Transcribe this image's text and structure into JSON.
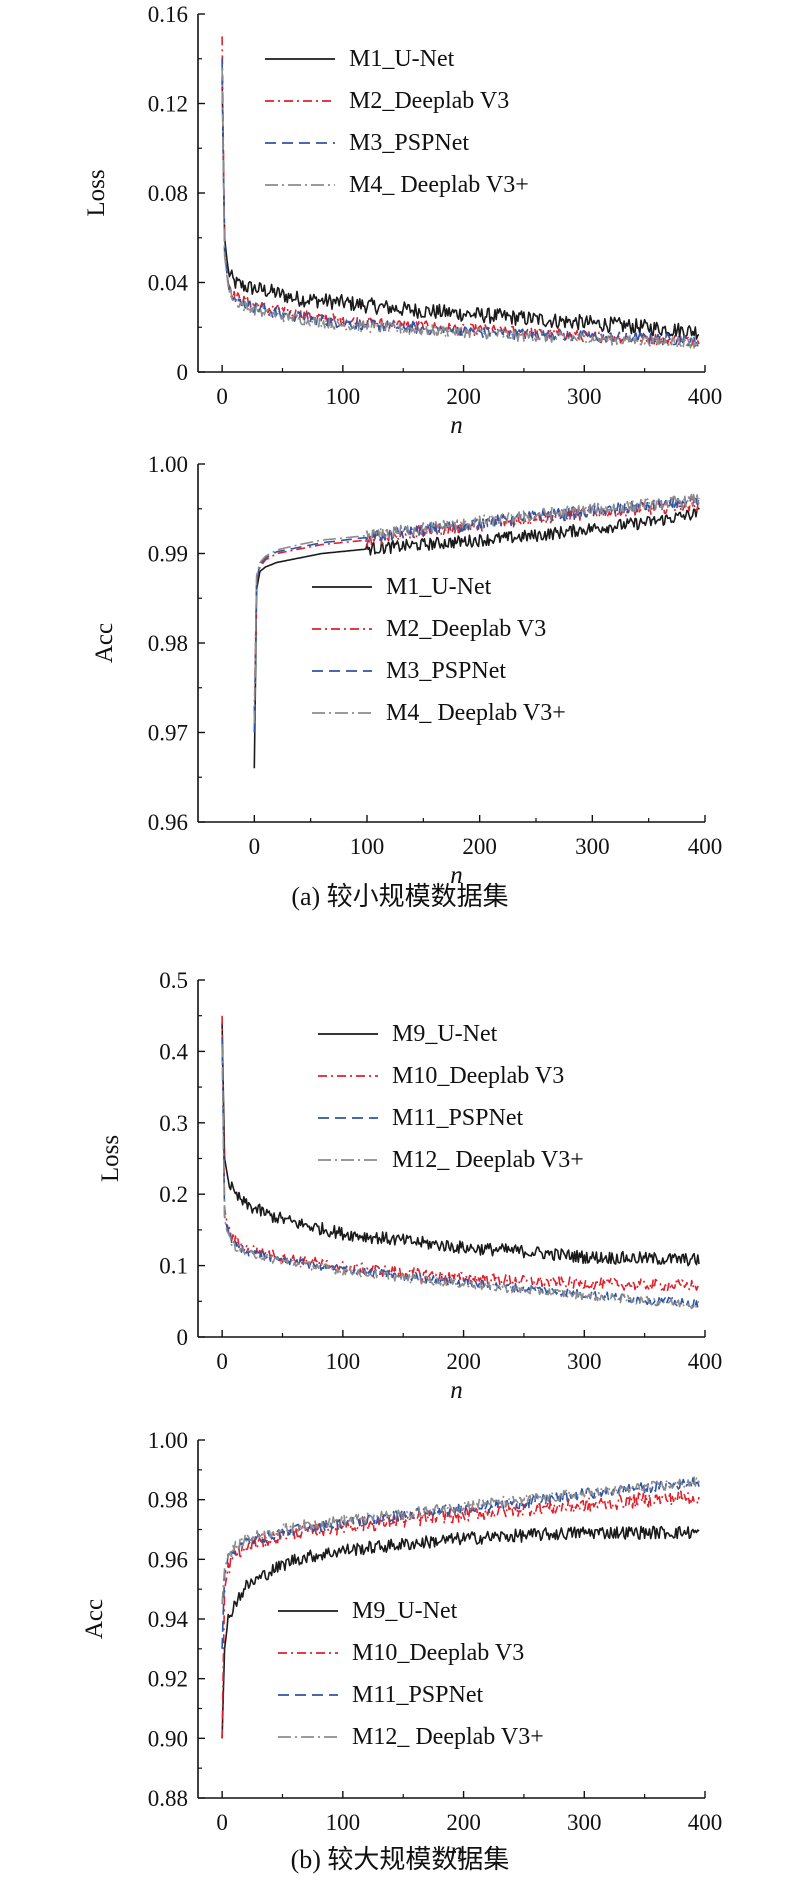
{
  "captions": {
    "a": "(a) 较小规模数据集",
    "b": "(b) 较大规模数据集"
  },
  "colors": {
    "unet": "#1a1a1a",
    "deeplab_v3": "#e0202a",
    "pspnet": "#2b55a8",
    "deeplab_v3plus": "#8c8c8c"
  },
  "chart_data": [
    {
      "id": "a_loss",
      "type": "line",
      "title": "",
      "xlabel": "n",
      "ylabel": "Loss",
      "xlim": [
        -20,
        400
      ],
      "ylim": [
        0,
        0.16
      ],
      "xticks": [
        0,
        100,
        200,
        300,
        400
      ],
      "xtick_labels": [
        "0",
        "100",
        "200",
        "300",
        "400"
      ],
      "yticks": [
        0,
        0.04,
        0.08,
        0.12,
        0.16
      ],
      "ytick_labels": [
        "0",
        "0.04",
        "0.08",
        "0.12",
        "0.16"
      ],
      "legend_position": "top-right",
      "series": [
        {
          "name": "M1_U-Net",
          "style": "solid",
          "color": "#1a1a1a",
          "x": [
            0,
            2,
            5,
            10,
            20,
            40,
            60,
            100,
            150,
            200,
            250,
            300,
            350,
            395
          ],
          "y": [
            0.132,
            0.06,
            0.045,
            0.04,
            0.038,
            0.036,
            0.033,
            0.031,
            0.028,
            0.026,
            0.024,
            0.022,
            0.02,
            0.018
          ],
          "noise": 0.0035
        },
        {
          "name": "M2_Deeplab V3",
          "style": "dashdot",
          "color": "#e0202a",
          "x": [
            0,
            2,
            5,
            10,
            20,
            40,
            60,
            100,
            150,
            200,
            250,
            300,
            350,
            395
          ],
          "y": [
            0.15,
            0.055,
            0.04,
            0.034,
            0.031,
            0.028,
            0.026,
            0.023,
            0.021,
            0.019,
            0.018,
            0.016,
            0.015,
            0.014
          ],
          "noise": 0.0025
        },
        {
          "name": "M3_PSPNet",
          "style": "dashed",
          "color": "#2b55a8",
          "x": [
            0,
            2,
            5,
            10,
            20,
            40,
            60,
            100,
            150,
            200,
            250,
            300,
            350,
            395
          ],
          "y": [
            0.14,
            0.054,
            0.039,
            0.033,
            0.03,
            0.027,
            0.025,
            0.022,
            0.02,
            0.018,
            0.017,
            0.016,
            0.015,
            0.014
          ],
          "noise": 0.0025
        },
        {
          "name": "M4_ Deeplab V3+",
          "style": "dashdot2",
          "color": "#8c8c8c",
          "x": [
            0,
            2,
            5,
            10,
            20,
            40,
            60,
            100,
            150,
            200,
            250,
            300,
            350,
            395
          ],
          "y": [
            0.136,
            0.052,
            0.038,
            0.032,
            0.029,
            0.026,
            0.024,
            0.021,
            0.019,
            0.018,
            0.016,
            0.015,
            0.014,
            0.013
          ],
          "noise": 0.0025
        }
      ]
    },
    {
      "id": "a_acc",
      "type": "line",
      "title": "",
      "xlabel": "n",
      "ylabel": "Acc",
      "xlim": [
        -50,
        400
      ],
      "ylim": [
        0.96,
        1.0
      ],
      "xticks": [
        0,
        100,
        200,
        300,
        400
      ],
      "xtick_labels": [
        "0",
        "100",
        "200",
        "300",
        "400"
      ],
      "yticks": [
        0.96,
        0.97,
        0.98,
        0.99,
        1.0
      ],
      "ytick_labels": [
        "0.96",
        "0.97",
        "0.98",
        "0.99",
        "1.00"
      ],
      "legend_position": "middle-right",
      "series": [
        {
          "name": "M1_U-Net",
          "style": "solid",
          "color": "#1a1a1a",
          "x": [
            0,
            2,
            5,
            10,
            20,
            40,
            60,
            100,
            150,
            200,
            250,
            300,
            350,
            395
          ],
          "y": [
            0.966,
            0.986,
            0.988,
            0.9885,
            0.989,
            0.9895,
            0.99,
            0.9905,
            0.991,
            0.9915,
            0.992,
            0.9928,
            0.9935,
            0.9945
          ],
          "noise": 0.0007
        },
        {
          "name": "M2_Deeplab V3",
          "style": "dashdot",
          "color": "#e0202a",
          "x": [
            0,
            2,
            5,
            10,
            20,
            40,
            60,
            100,
            150,
            200,
            250,
            300,
            350,
            395
          ],
          "y": [
            0.972,
            0.987,
            0.9885,
            0.9893,
            0.99,
            0.9905,
            0.991,
            0.9915,
            0.9925,
            0.9932,
            0.994,
            0.9945,
            0.995,
            0.9955
          ],
          "noise": 0.0007
        },
        {
          "name": "M3_PSPNet",
          "style": "dashed",
          "color": "#2b55a8",
          "x": [
            0,
            2,
            5,
            10,
            20,
            40,
            60,
            100,
            150,
            200,
            250,
            300,
            350,
            395
          ],
          "y": [
            0.97,
            0.987,
            0.9888,
            0.9895,
            0.9902,
            0.9907,
            0.9912,
            0.9918,
            0.9926,
            0.9934,
            0.9941,
            0.9947,
            0.9953,
            0.9958
          ],
          "noise": 0.0007
        },
        {
          "name": "M4_ Deeplab V3+",
          "style": "dashdot2",
          "color": "#8c8c8c",
          "x": [
            0,
            2,
            5,
            10,
            20,
            40,
            60,
            100,
            150,
            200,
            250,
            300,
            350,
            395
          ],
          "y": [
            0.971,
            0.9875,
            0.989,
            0.9897,
            0.9904,
            0.991,
            0.9915,
            0.992,
            0.9928,
            0.9936,
            0.9943,
            0.9949,
            0.9955,
            0.996
          ],
          "noise": 0.0007
        }
      ]
    },
    {
      "id": "b_loss",
      "type": "line",
      "title": "",
      "xlabel": "n",
      "ylabel": "Loss",
      "xlim": [
        -20,
        400
      ],
      "ylim": [
        0,
        0.5
      ],
      "xticks": [
        0,
        100,
        200,
        300,
        400
      ],
      "xtick_labels": [
        "0",
        "100",
        "200",
        "300",
        "400"
      ],
      "yticks": [
        0,
        0.1,
        0.2,
        0.3,
        0.4,
        0.5
      ],
      "ytick_labels": [
        "0",
        "0.1",
        "0.2",
        "0.3",
        "0.4",
        "0.5"
      ],
      "legend_position": "top-right",
      "series": [
        {
          "name": "M9_U-Net",
          "style": "solid",
          "color": "#1a1a1a",
          "x": [
            0,
            2,
            5,
            10,
            20,
            40,
            60,
            100,
            150,
            200,
            250,
            300,
            350,
            395
          ],
          "y": [
            0.44,
            0.25,
            0.22,
            0.2,
            0.185,
            0.17,
            0.16,
            0.145,
            0.135,
            0.125,
            0.12,
            0.112,
            0.11,
            0.108
          ],
          "noise": 0.009
        },
        {
          "name": "M10_Deeplab V3",
          "style": "dashdot",
          "color": "#e0202a",
          "x": [
            0,
            2,
            5,
            10,
            20,
            40,
            60,
            100,
            150,
            200,
            250,
            300,
            350,
            395
          ],
          "y": [
            0.45,
            0.18,
            0.15,
            0.135,
            0.125,
            0.115,
            0.108,
            0.098,
            0.09,
            0.083,
            0.078,
            0.075,
            0.073,
            0.072
          ],
          "noise": 0.008
        },
        {
          "name": "M11_PSPNet",
          "style": "dashed",
          "color": "#2b55a8",
          "x": [
            0,
            2,
            5,
            10,
            20,
            40,
            60,
            100,
            150,
            200,
            250,
            300,
            350,
            395
          ],
          "y": [
            0.42,
            0.17,
            0.145,
            0.13,
            0.12,
            0.112,
            0.105,
            0.095,
            0.085,
            0.076,
            0.068,
            0.06,
            0.052,
            0.046
          ],
          "noise": 0.006
        },
        {
          "name": "M12_ Deeplab V3+",
          "style": "dashdot2",
          "color": "#8c8c8c",
          "x": [
            0,
            2,
            5,
            10,
            20,
            40,
            60,
            100,
            150,
            200,
            250,
            300,
            350,
            395
          ],
          "y": [
            0.41,
            0.165,
            0.14,
            0.128,
            0.118,
            0.11,
            0.103,
            0.093,
            0.083,
            0.074,
            0.066,
            0.058,
            0.051,
            0.045
          ],
          "noise": 0.006
        }
      ]
    },
    {
      "id": "b_acc",
      "type": "line",
      "title": "",
      "xlabel": "n",
      "ylabel": "Acc",
      "xlim": [
        -20,
        400
      ],
      "ylim": [
        0.88,
        1.0
      ],
      "xticks": [
        0,
        100,
        200,
        300,
        400
      ],
      "xtick_labels": [
        "0",
        "100",
        "200",
        "300",
        "400"
      ],
      "yticks": [
        0.88,
        0.9,
        0.92,
        0.94,
        0.96,
        0.98,
        1.0
      ],
      "ytick_labels": [
        "0.88",
        "0.90",
        "0.92",
        "0.94",
        "0.96",
        "0.98",
        "1.00"
      ],
      "legend_position": "bottom-right",
      "series": [
        {
          "name": "M9_U-Net",
          "style": "solid",
          "color": "#1a1a1a",
          "x": [
            0,
            2,
            5,
            10,
            20,
            40,
            60,
            100,
            150,
            200,
            250,
            300,
            350,
            395
          ],
          "y": [
            0.9,
            0.93,
            0.94,
            0.945,
            0.951,
            0.956,
            0.96,
            0.963,
            0.965,
            0.967,
            0.968,
            0.969,
            0.969,
            0.969
          ],
          "noise": 0.0022
        },
        {
          "name": "M10_Deeplab V3",
          "style": "dashdot",
          "color": "#e0202a",
          "x": [
            0,
            2,
            5,
            10,
            20,
            40,
            60,
            100,
            150,
            200,
            250,
            300,
            350,
            395
          ],
          "y": [
            0.9,
            0.95,
            0.957,
            0.961,
            0.964,
            0.967,
            0.969,
            0.971,
            0.973,
            0.975,
            0.977,
            0.978,
            0.98,
            0.981
          ],
          "noise": 0.0025
        },
        {
          "name": "M11_PSPNet",
          "style": "dashed",
          "color": "#2b55a8",
          "x": [
            0,
            2,
            5,
            10,
            20,
            40,
            60,
            100,
            150,
            200,
            250,
            300,
            350,
            395
          ],
          "y": [
            0.93,
            0.955,
            0.96,
            0.963,
            0.966,
            0.968,
            0.97,
            0.972,
            0.975,
            0.977,
            0.979,
            0.982,
            0.984,
            0.986
          ],
          "noise": 0.0018
        },
        {
          "name": "M12_ Deeplab V3+",
          "style": "dashdot2",
          "color": "#8c8c8c",
          "x": [
            0,
            2,
            5,
            10,
            20,
            40,
            60,
            100,
            150,
            200,
            250,
            300,
            350,
            395
          ],
          "y": [
            0.945,
            0.957,
            0.961,
            0.964,
            0.967,
            0.969,
            0.971,
            0.973,
            0.975,
            0.978,
            0.98,
            0.982,
            0.984,
            0.986
          ],
          "noise": 0.0018
        }
      ]
    }
  ]
}
